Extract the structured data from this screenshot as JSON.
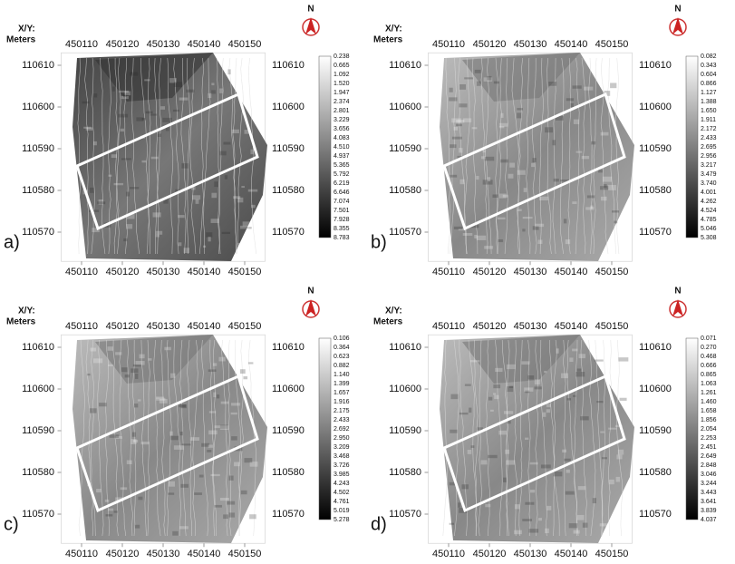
{
  "axes": {
    "xy_label": "X/Y:",
    "unit_label": "Meters",
    "north": "N",
    "xlim": [
      450105,
      450155
    ],
    "ylim": [
      110563,
      110613
    ],
    "xticks": [
      450110,
      450120,
      450130,
      450140,
      450150
    ],
    "yticks": [
      110570,
      110580,
      110590,
      110600,
      110610
    ]
  },
  "panels": [
    {
      "label": "a)",
      "colorbar_labels": [
        "0.238",
        "0.665",
        "1.092",
        "1.520",
        "1.947",
        "2.374",
        "2.801",
        "3.229",
        "3.656",
        "4.083",
        "4.510",
        "4.937",
        "5.365",
        "5.792",
        "6.219",
        "6.646",
        "7.074",
        "7.501",
        "7.928",
        "8.355",
        "8.783"
      ]
    },
    {
      "label": "b)",
      "colorbar_labels": [
        "0.082",
        "0.343",
        "0.604",
        "0.866",
        "1.127",
        "1.388",
        "1.650",
        "1.911",
        "2.172",
        "2.433",
        "2.695",
        "2.956",
        "3.217",
        "3.479",
        "3.740",
        "4.001",
        "4.262",
        "4.524",
        "4.785",
        "5.046",
        "5.308"
      ]
    },
    {
      "label": "c)",
      "colorbar_labels": [
        "0.106",
        "0.364",
        "0.623",
        "0.882",
        "1.140",
        "1.399",
        "1.657",
        "1.916",
        "2.175",
        "2.433",
        "2.692",
        "2.950",
        "3.209",
        "3.468",
        "3.726",
        "3.985",
        "4.243",
        "4.502",
        "4.761",
        "5.019",
        "5.278"
      ]
    },
    {
      "label": "d)",
      "colorbar_labels": [
        "0.071",
        "0.270",
        "0.468",
        "0.666",
        "0.865",
        "1.063",
        "1.261",
        "1.460",
        "1.658",
        "1.856",
        "2.054",
        "2.253",
        "2.451",
        "2.649",
        "2.848",
        "3.046",
        "3.244",
        "3.443",
        "3.641",
        "3.839",
        "4.037"
      ]
    }
  ]
}
